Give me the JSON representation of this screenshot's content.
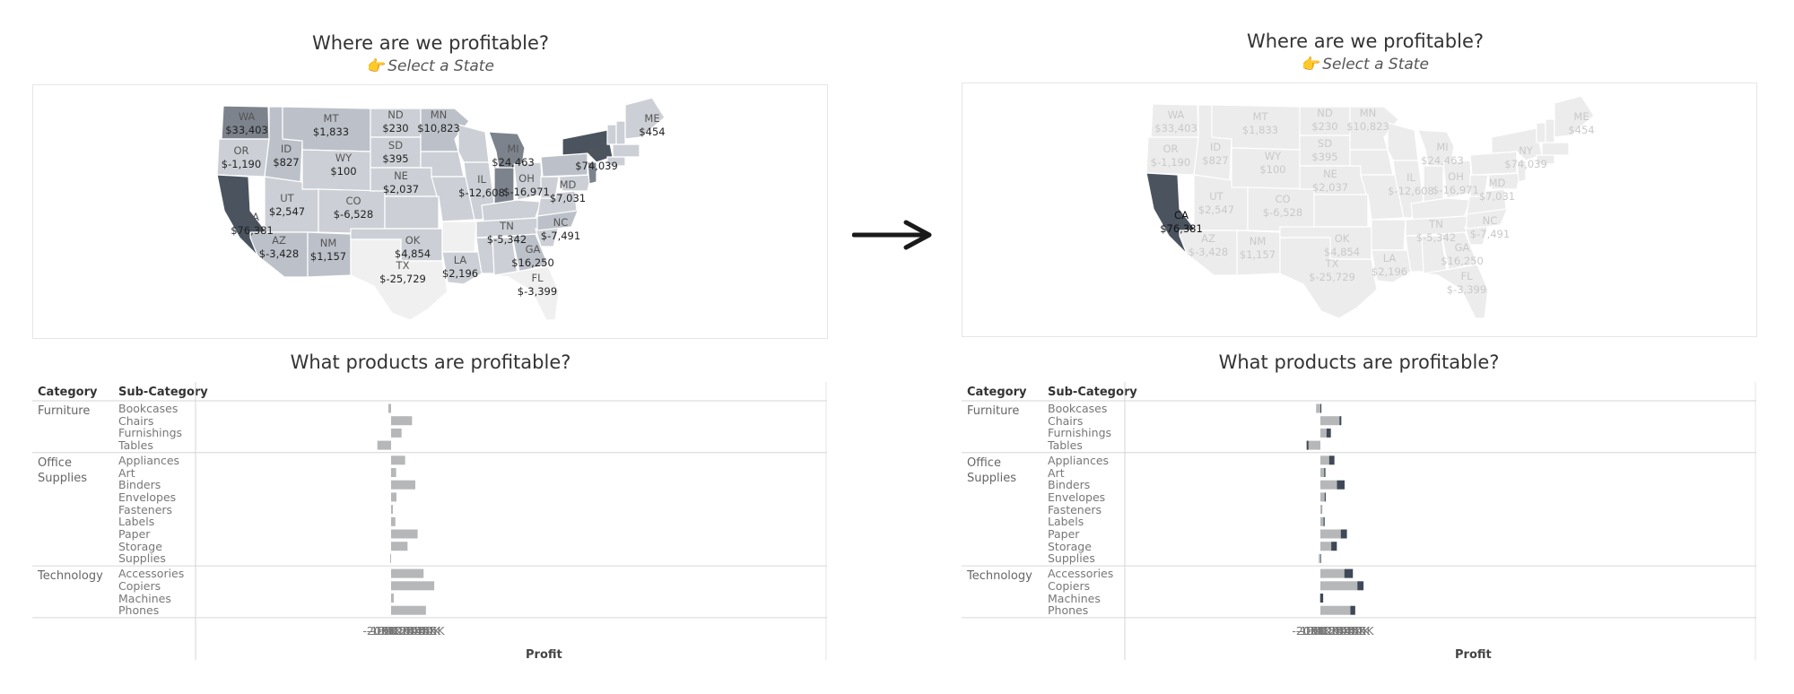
{
  "left": {
    "map_title": "Where are we profitable?",
    "map_subtitle": "Select a State",
    "chart_title": "What products are profitable?",
    "selected_state": null
  },
  "right": {
    "map_title": "Where are we profitable?",
    "map_subtitle": "Select a State",
    "chart_title": "What products are profitable?",
    "selected_state": "CA"
  },
  "colors": {
    "map_dark": "#4a535e",
    "map_mid": "#7c838d",
    "map_light": "#bcc1c9",
    "map_lighter": "#ccd0d6",
    "map_pale": "#f0f0f0",
    "bar_gray": "#b5b7b8",
    "bar_dark": "#3f4856",
    "arrow": "#1a1a1a"
  },
  "states": [
    {
      "code": "WA",
      "profit": "$33,403"
    },
    {
      "code": "MT",
      "profit": "$1,833"
    },
    {
      "code": "ND",
      "profit": "$230"
    },
    {
      "code": "MN",
      "profit": "$10,823"
    },
    {
      "code": "ME",
      "profit": "$454"
    },
    {
      "code": "OR",
      "profit": "$-1,190"
    },
    {
      "code": "ID",
      "profit": "$827"
    },
    {
      "code": "WY",
      "profit": "$100"
    },
    {
      "code": "SD",
      "profit": "$395"
    },
    {
      "code": "MI",
      "profit": "$24,463"
    },
    {
      "code": "NY",
      "profit": "$74,039"
    },
    {
      "code": "NE",
      "profit": "$2,037"
    },
    {
      "code": "OH",
      "profit": "$-16,971"
    },
    {
      "code": "IL",
      "profit": "$-12,608"
    },
    {
      "code": "MD",
      "profit": "$7,031"
    },
    {
      "code": "UT",
      "profit": "$2,547"
    },
    {
      "code": "CO",
      "profit": "$-6,528"
    },
    {
      "code": "CA",
      "profit": "$76,381"
    },
    {
      "code": "OK",
      "profit": "$4,854"
    },
    {
      "code": "TN",
      "profit": "$-5,342"
    },
    {
      "code": "NC",
      "profit": "$-7,491"
    },
    {
      "code": "AZ",
      "profit": "$-3,428"
    },
    {
      "code": "NM",
      "profit": "$1,157"
    },
    {
      "code": "GA",
      "profit": "$16,250"
    },
    {
      "code": "TX",
      "profit": "$-25,729"
    },
    {
      "code": "LA",
      "profit": "$2,196"
    },
    {
      "code": "FL",
      "profit": "$-3,399"
    }
  ],
  "table": {
    "col_category": "Category",
    "col_subcategory": "Sub-Category",
    "axis_title": "Profit",
    "ticks": [
      "-20K",
      "-15K",
      "-10K",
      "-5K",
      "0K",
      "5K",
      "10K",
      "15K",
      "20K",
      "25K",
      "30K",
      "35K",
      "40K",
      "45K",
      "50K",
      "55K"
    ]
  },
  "chart_data": {
    "type": "bar",
    "xlabel": "Profit",
    "xlim": [
      -21000,
      57500
    ],
    "groups": [
      {
        "category": "Furniture",
        "category_lines": [
          "Furniture"
        ],
        "subs": [
          "Bookcases",
          "Chairs",
          "Furnishings",
          "Tables"
        ],
        "total": [
          -3500,
          27000,
          13500,
          -17700
        ],
        "selected": [
          1300,
          27000,
          13500,
          -17700
        ],
        "highlight": [
          1300,
          2400,
          5600,
          300
        ]
      },
      {
        "category": "Office Supplies",
        "category_lines": [
          "Office",
          "Supplies"
        ],
        "subs": [
          "Appliances",
          "Art",
          "Binders",
          "Envelopes",
          "Fasteners",
          "Labels",
          "Paper",
          "Storage",
          "Supplies"
        ],
        "total": [
          18100,
          6500,
          31200,
          6900,
          2400,
          5500,
          34200,
          21200,
          -1200
        ],
        "selected": [
          18100,
          6500,
          31200,
          6900,
          2400,
          5500,
          34200,
          21200,
          800
        ],
        "highlight": [
          6800,
          1600,
          9800,
          1400,
          300,
          1400,
          7900,
          7200,
          800
        ]
      },
      {
        "category": "Technology",
        "category_lines": [
          "Technology"
        ],
        "subs": [
          "Accessories",
          "Copiers",
          "Machines",
          "Phones"
        ],
        "total": [
          41900,
          55600,
          3400,
          44900
        ],
        "selected": [
          41900,
          55600,
          -600,
          44900
        ],
        "highlight": [
          11000,
          7900,
          4200,
          6200
        ]
      }
    ]
  }
}
